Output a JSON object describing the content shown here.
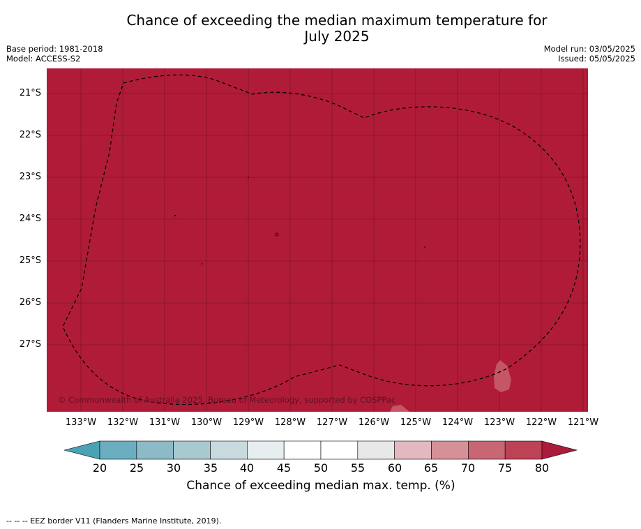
{
  "title": "Chance of exceeding the median maximum temperature for July 2025",
  "title_lines": [
    "Chance of exceeding the median maximum temperature for",
    "July 2025"
  ],
  "base_period": "Base period: 1981-2018",
  "model": "Model: ACCESS-S2",
  "model_run": "Model run: 03/05/2025",
  "issued": "Issued: 05/05/2025",
  "copyright": "© Commonwealth of Australia 2025, Bureau of Meteorology, supported by COSPPac",
  "map": {
    "fill_color": "#b01c37",
    "latitude_labels": [
      "21°S",
      "22°S",
      "23°S",
      "24°S",
      "25°S",
      "26°S",
      "27°S"
    ],
    "longitude_labels": [
      "133°W",
      "132°W",
      "131°W",
      "130°W",
      "129°W",
      "128°W",
      "127°W",
      "126°W",
      "125°W",
      "124°W",
      "123°W",
      "122°W",
      "121°W"
    ],
    "boundary_style": "dashed",
    "value_class": "80+"
  },
  "colorbar": {
    "ticks": [
      "20",
      "25",
      "30",
      "35",
      "40",
      "45",
      "50",
      "55",
      "60",
      "65",
      "70",
      "75",
      "80"
    ],
    "low_extend_color": "#4aa3b4",
    "high_extend_color": "#aa1c3a",
    "colors": [
      "#6aaebf",
      "#8cbac6",
      "#a8c9cf",
      "#c8dadd",
      "#e6eef0",
      "#ffffff",
      "#ffffff",
      "#e8e8e8",
      "#e3b9bf",
      "#d59098",
      "#c96674",
      "#bd4255"
    ],
    "label": "Chance of exceeding median max. temp. (%)"
  },
  "footnote": "-- -- -- EEZ border V11 (Flanders Marine Institute, 2019)."
}
